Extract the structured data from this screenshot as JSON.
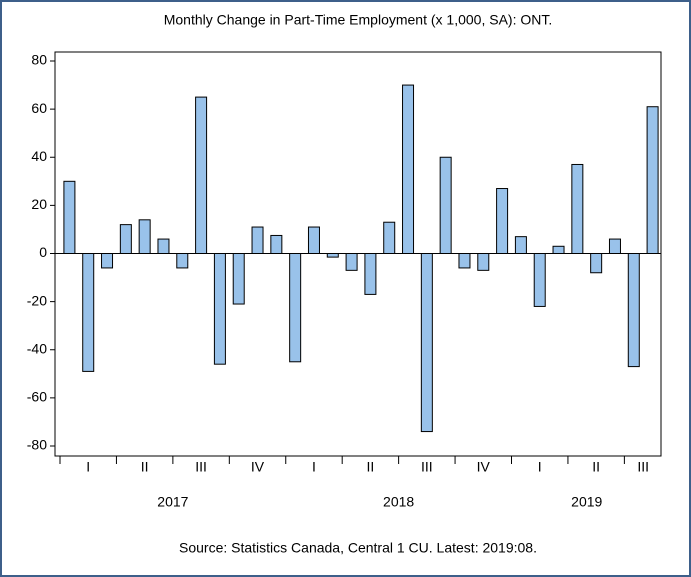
{
  "chart_data": {
    "type": "bar",
    "title": "Monthly Change in Part-Time Employment (x 1,000, SA): ONT.",
    "source": "Source: Statistics Canada, Central 1 CU. Latest: 2019:08.",
    "categories": [
      null,
      null,
      null,
      null,
      null,
      null,
      null,
      null,
      null,
      null,
      null,
      null,
      null,
      null,
      null,
      null,
      null,
      null,
      null,
      null,
      null,
      null,
      null,
      null,
      null,
      null,
      null,
      null,
      null,
      null,
      null,
      null
    ],
    "values": [
      30,
      -49,
      -6,
      12,
      14,
      6,
      -6,
      65,
      -46,
      -21,
      11,
      7.5,
      -45,
      11,
      -1.5,
      -7,
      -17,
      13,
      70,
      -74,
      40,
      -6,
      -7,
      27,
      7,
      -22,
      3,
      37,
      -8,
      6,
      -47,
      61
    ],
    "quarters": [
      "I",
      "II",
      "III",
      "IV",
      "I",
      "II",
      "III",
      "IV",
      "I",
      "II",
      "III"
    ],
    "years": [
      "2017",
      "2018",
      "2019"
    ],
    "color": "#99c2ea",
    "ylim": [
      -80,
      80
    ],
    "yticks": [
      -80,
      -60,
      -40,
      -20,
      0,
      20,
      40,
      60,
      80
    ]
  }
}
